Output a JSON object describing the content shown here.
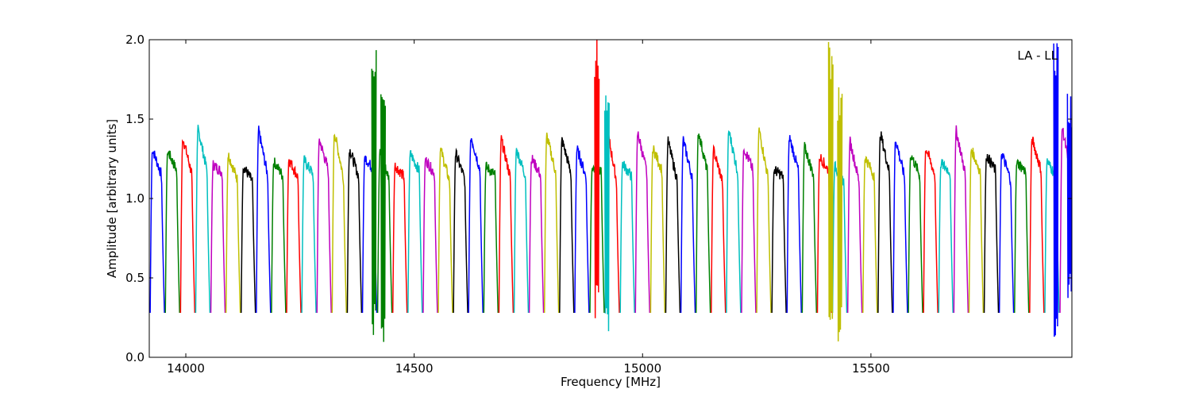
{
  "chart_data": {
    "type": "line",
    "title": "",
    "xlabel": "Frequency [MHz]",
    "ylabel": "Amplitude [arbitrary units]",
    "xlim": [
      13920,
      15940
    ],
    "ylim": [
      0.0,
      2.0
    ],
    "xticks": [
      14000,
      14500,
      15000,
      15500
    ],
    "yticks": [
      0.0,
      0.5,
      1.0,
      1.5,
      2.0
    ],
    "xtick_labels": [
      "14000",
      "14500",
      "15000",
      "15500"
    ],
    "ytick_labels": [
      "0.0",
      "0.5",
      "1.0",
      "1.5",
      "2.0"
    ],
    "annotation": "LA - LL",
    "annotation_position": "top-right",
    "grid": false,
    "color_cycle": [
      "#0000ff",
      "#008000",
      "#ff0000",
      "#00bfbf",
      "#bf00bf",
      "#bfbf00",
      "#000000"
    ],
    "segment_start": 13922,
    "segment_width": 33.2,
    "segment_count": 61,
    "segment_shape": {
      "edge_min": 0.28,
      "shoulder": 1.15,
      "peak_range": [
        1.18,
        1.45
      ]
    },
    "spikes": [
      {
        "x": 14412,
        "ymin": 0.1,
        "ymax": 2.0,
        "color": "#008000"
      },
      {
        "x": 14432,
        "ymin": 0.08,
        "ymax": 1.68,
        "color": "#008000"
      },
      {
        "x": 14900,
        "ymin": 0.22,
        "ymax": 2.0,
        "color": "#ff0000"
      },
      {
        "x": 14922,
        "ymin": 0.08,
        "ymax": 1.68,
        "color": "#00bfbf"
      },
      {
        "x": 15412,
        "ymin": 0.08,
        "ymax": 2.0,
        "color": "#bfbf00"
      },
      {
        "x": 15432,
        "ymin": 0.08,
        "ymax": 1.7,
        "color": "#bfbf00"
      },
      {
        "x": 15905,
        "ymin": 0.08,
        "ymax": 2.0,
        "color": "#0000ff"
      },
      {
        "x": 15935,
        "ymin": 0.3,
        "ymax": 1.68,
        "color": "#0000ff"
      }
    ]
  }
}
